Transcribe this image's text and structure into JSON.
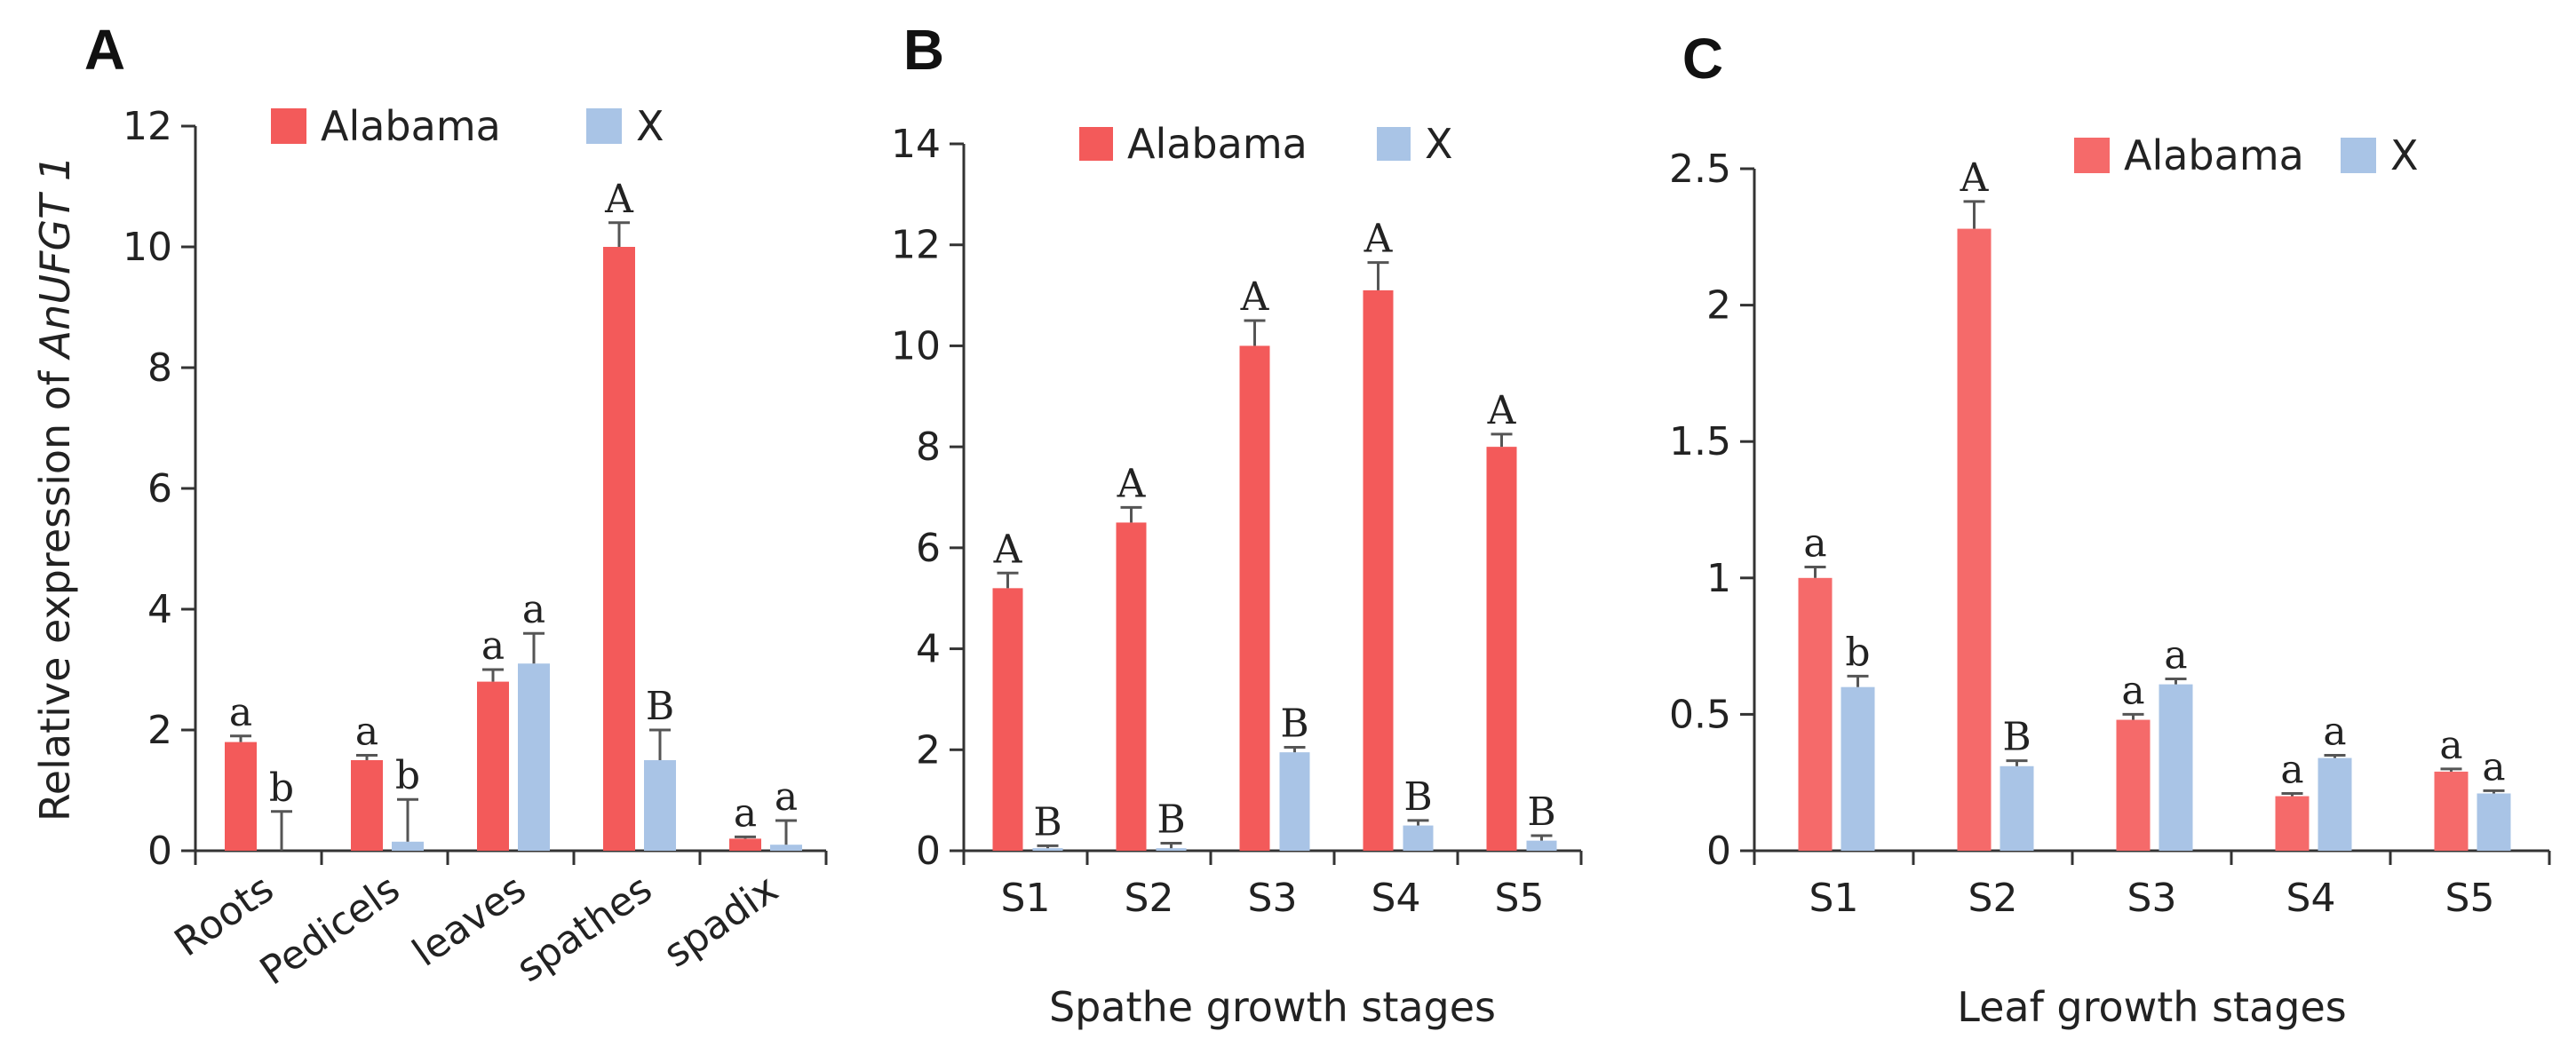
{
  "chart_data": [
    {
      "panel": "A",
      "type": "bar",
      "title": "",
      "xlabel": "",
      "ylabel_prefix": "Relative expression of ",
      "ylabel_gene": "AnUFGT 1",
      "ylim": [
        0,
        12
      ],
      "yticks": [
        0,
        2,
        4,
        6,
        8,
        10,
        12
      ],
      "ytick_labels": [
        "0",
        "2",
        "4",
        "6",
        "8",
        "10",
        "12"
      ],
      "categories": [
        "Roots",
        "Pedicels",
        "leaves",
        "spathes",
        "spadix"
      ],
      "legend_position": "top",
      "series": [
        {
          "name": "Alabama",
          "color": "#f35a5a",
          "values": [
            1.8,
            1.5,
            2.8,
            10.0,
            0.2
          ],
          "errors": [
            0.1,
            0.08,
            0.2,
            0.4,
            0.03
          ],
          "labels": [
            "a",
            "a",
            "a",
            "A",
            "a"
          ]
        },
        {
          "name": "X",
          "color": "#a9c4e6",
          "values": [
            0.0,
            0.15,
            3.1,
            1.5,
            0.1
          ],
          "errors": [
            0.65,
            0.7,
            0.5,
            0.5,
            0.4
          ],
          "labels": [
            "b",
            "b",
            "a",
            "B",
            "a"
          ]
        }
      ]
    },
    {
      "panel": "B",
      "type": "bar",
      "title": "",
      "xlabel": "Spathe growth stages",
      "ylabel": "",
      "ylim": [
        0,
        14
      ],
      "yticks": [
        0,
        2,
        4,
        6,
        8,
        10,
        12,
        14
      ],
      "ytick_labels": [
        "0",
        "2",
        "4",
        "6",
        "8",
        "10",
        "12",
        "14"
      ],
      "categories": [
        "S1",
        "S2",
        "S3",
        "S4",
        "S5"
      ],
      "legend_position": "top",
      "series": [
        {
          "name": "Alabama",
          "color": "#f35a5a",
          "values": [
            5.2,
            6.5,
            10.0,
            11.1,
            8.0
          ],
          "errors": [
            0.3,
            0.3,
            0.5,
            0.55,
            0.25
          ],
          "labels": [
            "A",
            "A",
            "A",
            "A",
            "A"
          ]
        },
        {
          "name": "X",
          "color": "#a9c4e6",
          "values": [
            0.05,
            0.05,
            1.95,
            0.5,
            0.2
          ],
          "errors": [
            0.05,
            0.1,
            0.1,
            0.1,
            0.1
          ],
          "labels": [
            "B",
            "B",
            "B",
            "B",
            "B"
          ]
        }
      ]
    },
    {
      "panel": "C",
      "type": "bar",
      "title": "",
      "xlabel": "Leaf growth stages",
      "ylabel": "",
      "ylim": [
        0,
        2.5
      ],
      "yticks": [
        0,
        0.5,
        1,
        1.5,
        2,
        2.5
      ],
      "ytick_labels": [
        "0",
        "0.5",
        "1",
        "1.5",
        "2",
        "2.5"
      ],
      "categories": [
        "S1",
        "S2",
        "S3",
        "S4",
        "S5"
      ],
      "legend_position": "top",
      "series": [
        {
          "name": "Alabama",
          "color": "#f56a6a",
          "values": [
            1.0,
            2.28,
            0.48,
            0.2,
            0.29
          ],
          "errors": [
            0.04,
            0.1,
            0.02,
            0.01,
            0.01
          ],
          "labels": [
            "a",
            "A",
            "a",
            "a",
            "a"
          ]
        },
        {
          "name": "X",
          "color": "#a9c4e6",
          "values": [
            0.6,
            0.31,
            0.61,
            0.34,
            0.21
          ],
          "errors": [
            0.04,
            0.02,
            0.02,
            0.01,
            0.01
          ],
          "labels": [
            "b",
            "B",
            "a",
            "a",
            "a"
          ]
        }
      ]
    }
  ]
}
